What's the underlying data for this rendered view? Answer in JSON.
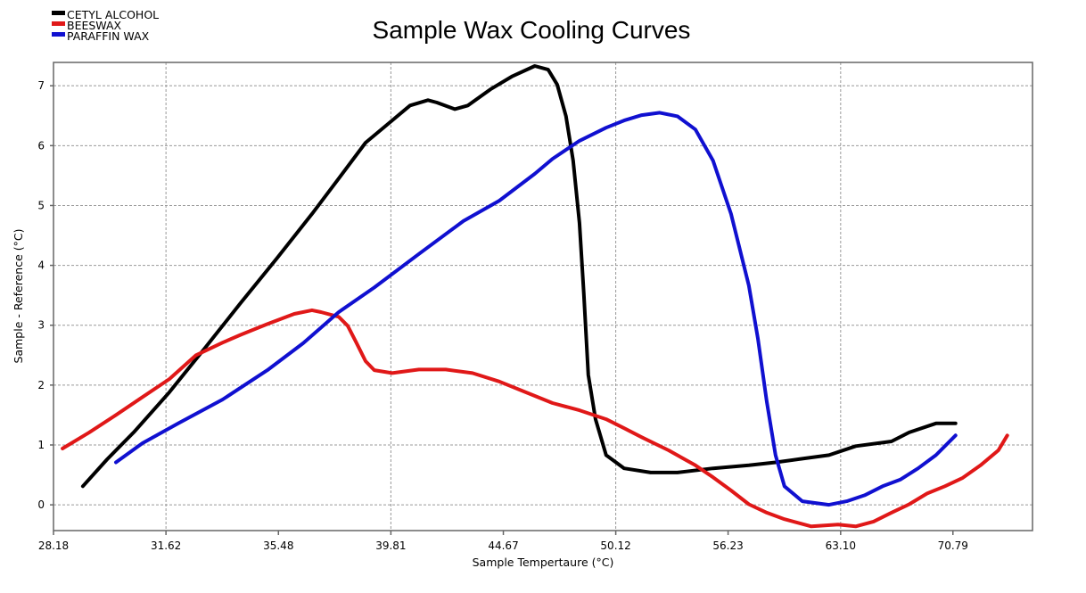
{
  "chart_data": {
    "type": "line",
    "title": "Sample Wax Cooling Curves",
    "xlabel": "Sample Tempertaure (°C)",
    "ylabel": "Sample - Reference (°C)",
    "x_scale": "log",
    "xlim": [
      28.18,
      76.8
    ],
    "ylim": [
      -0.43,
      7.39
    ],
    "x_ticks": [
      "28.18",
      "31.62",
      "35.48",
      "39.81",
      "44.67",
      "50.12",
      "56.23",
      "63.10",
      "70.79"
    ],
    "x_grid_at": [
      31.62,
      39.81,
      50.12,
      63.1
    ],
    "y_ticks": [
      0,
      1,
      2,
      3,
      4,
      5,
      6,
      7
    ],
    "grid": true,
    "legend_position": "top-left",
    "series": [
      {
        "name": "CETYL ALCOHOL",
        "color": "#000000",
        "x": [
          29.04,
          29.77,
          30.59,
          31.73,
          32.91,
          34.13,
          35.41,
          36.72,
          37.74,
          38.79,
          39.86,
          40.6,
          41.35,
          41.73,
          42.5,
          43.08,
          44.08,
          45.09,
          46.13,
          46.77,
          47.2,
          47.63,
          47.98,
          48.29,
          48.51,
          48.73,
          49.09,
          49.63,
          50.55,
          51.94,
          53.39,
          55.37,
          57.44,
          59.03,
          60.67,
          62.35,
          64.08,
          66.47,
          67.69,
          69.57,
          70.98
        ],
        "y": [
          0.31,
          0.76,
          1.21,
          1.88,
          2.62,
          3.37,
          4.11,
          4.86,
          5.45,
          6.05,
          6.42,
          6.67,
          6.76,
          6.72,
          6.61,
          6.67,
          6.94,
          7.16,
          7.33,
          7.27,
          7.02,
          6.49,
          5.75,
          4.71,
          3.52,
          2.17,
          1.43,
          0.83,
          0.61,
          0.54,
          0.54,
          0.61,
          0.66,
          0.71,
          0.77,
          0.83,
          0.98,
          1.06,
          1.21,
          1.36,
          1.36
        ]
      },
      {
        "name": "BEESWAX",
        "color": "#e01818",
        "x": [
          28.44,
          29.23,
          30.04,
          30.87,
          31.73,
          32.61,
          33.51,
          34.13,
          35.08,
          36.06,
          36.72,
          37.06,
          37.74,
          38.09,
          38.44,
          38.79,
          39.14,
          39.86,
          40.97,
          42.11,
          43.28,
          44.48,
          45.71,
          46.98,
          48.29,
          49.63,
          50.55,
          51.47,
          52.91,
          54.38,
          55.37,
          56.4,
          57.44,
          58.5,
          59.57,
          61.23,
          62.93,
          64.08,
          65.26,
          66.47,
          67.69,
          68.94,
          70.21,
          71.5,
          72.82,
          74.16,
          74.84
        ],
        "y": [
          0.94,
          1.21,
          1.5,
          1.8,
          2.1,
          2.5,
          2.71,
          2.84,
          3.02,
          3.19,
          3.25,
          3.22,
          3.14,
          2.99,
          2.7,
          2.4,
          2.25,
          2.2,
          2.26,
          2.26,
          2.2,
          2.06,
          1.88,
          1.7,
          1.58,
          1.43,
          1.28,
          1.13,
          0.91,
          0.66,
          0.46,
          0.24,
          0.01,
          -0.13,
          -0.24,
          -0.36,
          -0.33,
          -0.36,
          -0.28,
          -0.13,
          0.01,
          0.19,
          0.31,
          0.45,
          0.66,
          0.91,
          1.16
        ]
      },
      {
        "name": "PARAFFIN WAX",
        "color": "#1010d0",
        "x": [
          30.04,
          30.87,
          32.02,
          33.51,
          35.08,
          36.39,
          37.74,
          39.14,
          40.97,
          42.88,
          44.48,
          46.13,
          46.98,
          48.29,
          49.63,
          50.55,
          51.47,
          52.43,
          53.39,
          54.38,
          55.37,
          56.4,
          57.44,
          57.97,
          58.5,
          59.03,
          59.57,
          60.67,
          62.35,
          63.5,
          64.67,
          65.87,
          67.07,
          68.31,
          69.57,
          70.98
        ],
        "y": [
          0.71,
          1.03,
          1.36,
          1.76,
          2.25,
          2.7,
          3.22,
          3.63,
          4.19,
          4.74,
          5.08,
          5.53,
          5.78,
          6.08,
          6.3,
          6.42,
          6.51,
          6.55,
          6.49,
          6.27,
          5.75,
          4.86,
          3.66,
          2.78,
          1.73,
          0.83,
          0.31,
          0.06,
          0.0,
          0.06,
          0.16,
          0.31,
          0.42,
          0.61,
          0.83,
          1.16
        ]
      }
    ]
  }
}
